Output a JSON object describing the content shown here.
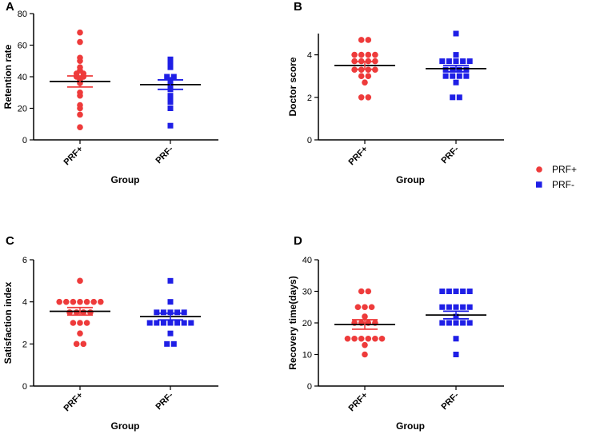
{
  "colors": {
    "prf_plus": "#ee3b3b",
    "prf_minus": "#1f1fe6",
    "axis": "#000000"
  },
  "legend": [
    {
      "label": "PRF+",
      "shape": "circle",
      "color": "#ee3b3b"
    },
    {
      "label": "PRF-",
      "shape": "square",
      "color": "#1f1fe6"
    }
  ],
  "chart_data": [
    {
      "panel": "A",
      "type": "scatter",
      "ylabel": "Retention rate",
      "xlabel": "Group",
      "categories": [
        "PRF+",
        "PRF-"
      ],
      "ylim": [
        0,
        80
      ],
      "yticks": [
        0,
        20,
        40,
        60,
        80
      ],
      "series": [
        {
          "name": "PRF+",
          "values": [
            68,
            62,
            52,
            50,
            46,
            44,
            42,
            42,
            40,
            40,
            38,
            36,
            30,
            28,
            22,
            20,
            16,
            8
          ],
          "mean": 37,
          "sem": 3.5
        },
        {
          "name": "PRF-",
          "values": [
            51,
            50,
            49,
            48,
            47,
            46,
            40,
            40,
            38,
            35,
            34,
            32,
            28,
            26,
            24,
            20,
            9
          ],
          "mean": 35,
          "sem": 3
        }
      ]
    },
    {
      "panel": "B",
      "type": "scatter",
      "ylabel": "Doctor score",
      "xlabel": "Group",
      "categories": [
        "PRF+",
        "PRF-"
      ],
      "ylim": [
        0,
        5
      ],
      "yticks": [
        0,
        2,
        4
      ],
      "series": [
        {
          "name": "PRF+",
          "values": [
            4.7,
            4.7,
            4,
            4,
            4,
            4,
            3.7,
            3.7,
            3.7,
            3.7,
            3.3,
            3.3,
            3.3,
            3.3,
            3,
            3,
            2.7,
            2,
            2
          ],
          "mean": 3.5,
          "sem": 0.18
        },
        {
          "name": "PRF-",
          "values": [
            5,
            4,
            3.7,
            3.7,
            3.7,
            3.7,
            3.7,
            3.3,
            3.3,
            3.3,
            3.3,
            3,
            3,
            3,
            3,
            2.7,
            2,
            2
          ],
          "mean": 3.35,
          "sem": 0.15
        }
      ]
    },
    {
      "panel": "C",
      "type": "scatter",
      "ylabel": "Satisfaction index",
      "xlabel": "Group",
      "categories": [
        "PRF+",
        "PRF-"
      ],
      "ylim": [
        0,
        6
      ],
      "yticks": [
        0,
        2,
        4,
        6
      ],
      "series": [
        {
          "name": "PRF+",
          "values": [
            5,
            4,
            4,
            4,
            4,
            4,
            4,
            4,
            3.5,
            3.5,
            3.5,
            3.5,
            3,
            3,
            3,
            2.5,
            2,
            2
          ],
          "mean": 3.55,
          "sem": 0.18
        },
        {
          "name": "PRF-",
          "values": [
            5,
            4,
            3.5,
            3.5,
            3.5,
            3.5,
            3.5,
            3,
            3,
            3,
            3,
            3,
            3,
            3,
            2.5,
            2,
            2
          ],
          "mean": 3.3,
          "sem": 0.16
        }
      ]
    },
    {
      "panel": "D",
      "type": "scatter",
      "ylabel": "Recovery time(days)",
      "xlabel": "Group",
      "categories": [
        "PRF+",
        "PRF-"
      ],
      "ylim": [
        0,
        40
      ],
      "yticks": [
        0,
        10,
        20,
        30,
        40
      ],
      "series": [
        {
          "name": "PRF+",
          "values": [
            30,
            30,
            25,
            25,
            25,
            22,
            20,
            20,
            20,
            20,
            15,
            15,
            15,
            15,
            15,
            15,
            13,
            10
          ],
          "mean": 19.5,
          "sem": 1.5
        },
        {
          "name": "PRF-",
          "values": [
            30,
            30,
            30,
            30,
            30,
            25,
            25,
            25,
            25,
            25,
            22,
            20,
            20,
            20,
            20,
            20,
            15,
            10
          ],
          "mean": 22.5,
          "sem": 1.2
        }
      ]
    }
  ]
}
